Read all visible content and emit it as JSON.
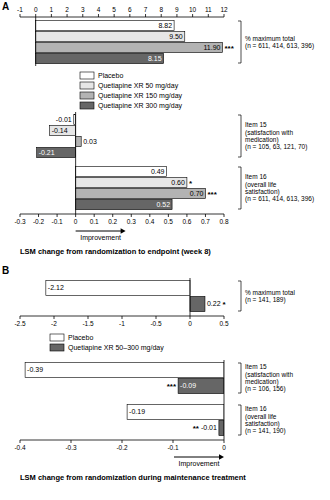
{
  "chart_data": [
    {
      "type": "bar",
      "title": "A",
      "orientation": "horizontal",
      "data_labels": true,
      "categories": [
        "% maximum total\n(n = 611, 414, 613, 396)"
      ],
      "series": [
        {
          "color": "#ffffff",
          "values": [
            8.82
          ],
          "value_labels": [
            "8.82"
          ]
        },
        {
          "color": "#e6e6e6",
          "values": [
            9.5
          ],
          "value_labels": [
            "9.50"
          ]
        },
        {
          "color": "#b3b3b3",
          "values": [
            11.9
          ],
          "value_labels": [
            "11.90"
          ],
          "annotations": [
            "***"
          ]
        },
        {
          "color": "#666666",
          "values": [
            8.15
          ],
          "value_labels": [
            "8.15"
          ]
        }
      ],
      "xlim": [
        -1,
        12
      ],
      "xticks": [
        -1,
        0,
        1,
        2,
        3,
        4,
        5,
        6,
        7,
        8,
        9,
        10,
        11,
        12
      ]
    },
    {
      "type": "bar",
      "orientation": "horizontal",
      "data_labels": true,
      "legend": "top-left",
      "xlabel": "LSM change from randomization to endpoint (week 8)",
      "annotations": [
        "Improvement"
      ],
      "categories": [
        "Item 15\n(satisfaction with\nmedication)\n(n = 105, 63, 121, 70)",
        "Item 16\n(overall life\nsatisfaction)\n(n = 611, 414, 613, 396)"
      ],
      "series": [
        {
          "name": "Placebo",
          "color": "#ffffff",
          "values": [
            -0.01,
            0.49
          ],
          "value_labels": [
            "-0.01",
            "0.49"
          ]
        },
        {
          "name": "Quetiapine XR 50 mg/day",
          "color": "#e6e6e6",
          "values": [
            -0.14,
            0.6
          ],
          "value_labels": [
            "-0.14",
            "0.60"
          ],
          "annotations": [
            null,
            "*"
          ]
        },
        {
          "name": "Quetiapine XR 150 mg/day",
          "color": "#b3b3b3",
          "values": [
            0.03,
            0.7
          ],
          "value_labels": [
            "0.03",
            "0.70"
          ],
          "annotations": [
            null,
            "***"
          ]
        },
        {
          "name": "Quetiapine XR 300 mg/day",
          "color": "#666666",
          "values": [
            -0.21,
            0.52
          ],
          "value_labels": [
            "-0.21",
            "0.52"
          ]
        }
      ],
      "xlim": [
        -0.3,
        0.8
      ],
      "xticks": [
        -0.3,
        -0.2,
        -0.1,
        0,
        0.1,
        0.2,
        0.3,
        0.4,
        0.5,
        0.6,
        0.7,
        0.8
      ]
    },
    {
      "type": "bar",
      "title": "B",
      "orientation": "horizontal",
      "data_labels": true,
      "categories": [
        "% maximum total\n(n = 141, 189)"
      ],
      "series": [
        {
          "color": "#ffffff",
          "values": [
            -2.12
          ],
          "value_labels": [
            "-2.12"
          ]
        },
        {
          "color": "#666666",
          "values": [
            0.22
          ],
          "value_labels": [
            "0.22"
          ],
          "annotations": [
            "*"
          ]
        }
      ],
      "xlim": [
        -2.5,
        0.5
      ],
      "xticks": [
        -2.5,
        -2,
        -1.5,
        -1,
        -0.5,
        0,
        0.5
      ]
    },
    {
      "type": "bar",
      "orientation": "horizontal",
      "data_labels": true,
      "legend": "top-left",
      "xlabel": "LSM change from randomization during maintenance treatment",
      "annotations": [
        "Improvement"
      ],
      "categories": [
        "Item 15\n(satisfaction with\nmedication)\n(n = 106, 156)",
        "Item 16\n(overall life\nsatisfaction)\n(n = 141, 190)"
      ],
      "series": [
        {
          "name": "Placebo",
          "color": "#ffffff",
          "values": [
            -0.39,
            -0.19
          ],
          "value_labels": [
            "-0.39",
            "-0.19"
          ]
        },
        {
          "name": "Quetiapine XR 50–300 mg/day",
          "color": "#666666",
          "values": [
            -0.09,
            -0.01
          ],
          "value_labels": [
            "-0.09",
            "-0.01"
          ],
          "annotations": [
            "***",
            "**"
          ]
        }
      ],
      "xlim": [
        -0.4,
        0
      ],
      "xticks": [
        -0.4,
        -0.3,
        -0.2,
        -0.1,
        0
      ]
    }
  ]
}
